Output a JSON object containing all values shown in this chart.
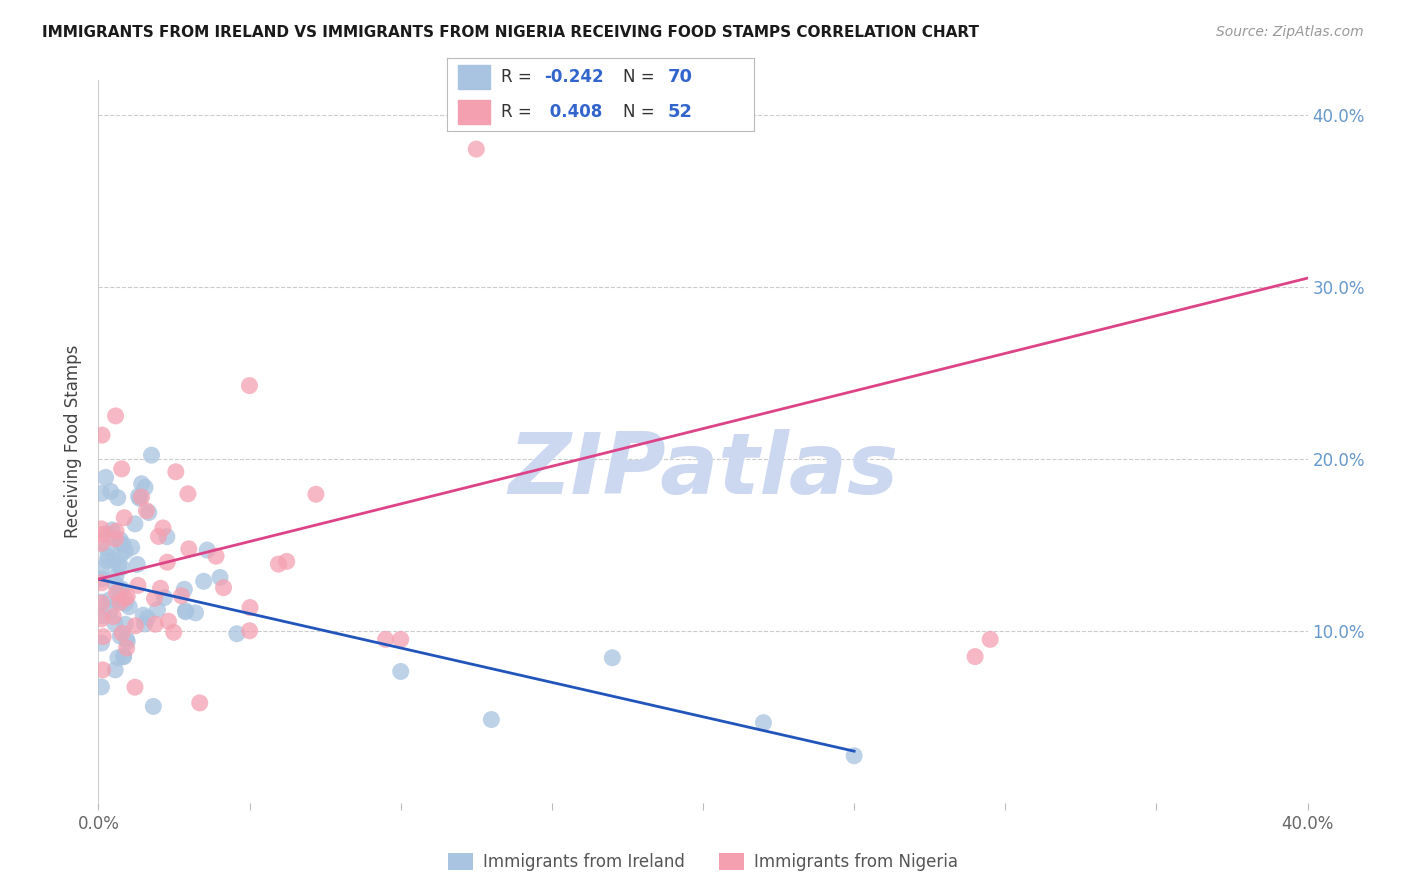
{
  "title": "IMMIGRANTS FROM IRELAND VS IMMIGRANTS FROM NIGERIA RECEIVING FOOD STAMPS CORRELATION CHART",
  "source": "Source: ZipAtlas.com",
  "ylabel": "Receiving Food Stamps",
  "legend_label_ireland": "Immigrants from Ireland",
  "legend_label_nigeria": "Immigrants from Nigeria",
  "color_ireland": "#a8c4e0",
  "color_nigeria": "#f4a0b0",
  "line_color_ireland": "#2255bb",
  "line_color_nigeria": "#dd4488",
  "watermark": "ZIPatlas",
  "watermark_color": "#ccd8f0",
  "r_ireland": "-0.242",
  "n_ireland": "70",
  "r_nigeria": "0.408",
  "n_nigeria": "52",
  "xlim": [
    0.0,
    0.4
  ],
  "ylim": [
    0.0,
    0.42
  ],
  "background_color": "#ffffff",
  "grid_color": "#cccccc",
  "right_tick_color": "#6699cc",
  "title_fontsize": 11,
  "source_fontsize": 10,
  "ireland_line_x0": 0.0,
  "ireland_line_y0": 0.13,
  "ireland_line_x1": 0.25,
  "ireland_line_y1": 0.03,
  "nigeria_line_x0": 0.0,
  "nigeria_line_y0": 0.13,
  "nigeria_line_x1": 0.4,
  "nigeria_line_y1": 0.305
}
